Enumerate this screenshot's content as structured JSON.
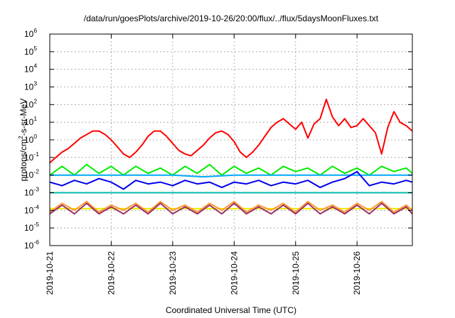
{
  "chart_data": {
    "type": "line",
    "title": "/data/run/goesPlots/archive/2019-10-26/20:00/flux/../flux/5daysMoonFluxes.txt",
    "xlabel": "Coordinated Universal Time (UTC)",
    "ylabel_main": "protons/cm",
    "ylabel_sup": "2",
    "ylabel_tail": "-s-sr-MeV",
    "xlim": [
      0,
      5.9
    ],
    "ylim_log10": [
      -6,
      6
    ],
    "yscale": "log",
    "grid": true,
    "legend": "none",
    "x_ticks": [
      {
        "x": 0,
        "label": "2019-10-21"
      },
      {
        "x": 1,
        "label": "2019-10-22"
      },
      {
        "x": 2,
        "label": "2019-10-23"
      },
      {
        "x": 3,
        "label": "2019-10-24"
      },
      {
        "x": 4,
        "label": "2019-10-25"
      },
      {
        "x": 5,
        "label": "2019-10-26"
      }
    ],
    "y_ticks": [
      {
        "exp": 6,
        "label": "6"
      },
      {
        "exp": 5,
        "label": "5"
      },
      {
        "exp": 4,
        "label": "4"
      },
      {
        "exp": 3,
        "label": "3"
      },
      {
        "exp": 2,
        "label": "2"
      },
      {
        "exp": 1,
        "label": "1"
      },
      {
        "exp": 0,
        "label": "0"
      },
      {
        "exp": -1,
        "label": "-1"
      },
      {
        "exp": -2,
        "label": "-2"
      },
      {
        "exp": -3,
        "label": "-3"
      },
      {
        "exp": -4,
        "label": "-4"
      },
      {
        "exp": -5,
        "label": "-5"
      },
      {
        "exp": -6,
        "label": "-6"
      }
    ],
    "series": [
      {
        "color": "#ff0000",
        "x": [
          0,
          0.1,
          0.2,
          0.3,
          0.4,
          0.5,
          0.6,
          0.7,
          0.8,
          0.9,
          1.0,
          1.1,
          1.2,
          1.3,
          1.4,
          1.5,
          1.6,
          1.7,
          1.8,
          1.9,
          2.0,
          2.1,
          2.2,
          2.3,
          2.4,
          2.5,
          2.6,
          2.7,
          2.8,
          2.9,
          3.0,
          3.1,
          3.2,
          3.3,
          3.4,
          3.5,
          3.6,
          3.7,
          3.8,
          3.9,
          4.0,
          4.1,
          4.2,
          4.3,
          4.4,
          4.5,
          4.6,
          4.7,
          4.8,
          4.9,
          5.0,
          5.1,
          5.2,
          5.3,
          5.4,
          5.5,
          5.6,
          5.7,
          5.8,
          5.9
        ],
        "log10_y": [
          -1.3,
          -1.0,
          -0.7,
          -0.5,
          -0.2,
          0.1,
          0.3,
          0.5,
          0.5,
          0.3,
          0.0,
          -0.4,
          -0.8,
          -1.0,
          -0.7,
          -0.3,
          0.2,
          0.5,
          0.5,
          0.2,
          -0.2,
          -0.6,
          -0.8,
          -0.9,
          -0.6,
          -0.3,
          0.1,
          0.4,
          0.5,
          0.3,
          -0.1,
          -0.7,
          -1.0,
          -0.7,
          -0.3,
          0.2,
          0.7,
          1.0,
          1.2,
          0.9,
          0.6,
          1.0,
          0.1,
          0.9,
          1.2,
          2.3,
          1.3,
          0.8,
          1.2,
          0.7,
          0.8,
          1.2,
          0.8,
          0.4,
          -0.8,
          0.7,
          1.6,
          1.0,
          0.8,
          0.5
        ]
      },
      {
        "color": "#00ee00",
        "x": [
          0,
          0.2,
          0.4,
          0.6,
          0.8,
          1.0,
          1.2,
          1.4,
          1.6,
          1.8,
          2.0,
          2.2,
          2.4,
          2.6,
          2.8,
          3.0,
          3.2,
          3.4,
          3.6,
          3.8,
          4.0,
          4.2,
          4.4,
          4.6,
          4.8,
          5.0,
          5.2,
          5.4,
          5.6,
          5.8,
          5.9
        ],
        "log10_y": [
          -2.0,
          -1.5,
          -2.0,
          -1.4,
          -1.9,
          -1.5,
          -2.0,
          -1.5,
          -1.9,
          -1.6,
          -2.0,
          -1.5,
          -1.9,
          -1.4,
          -2.0,
          -1.5,
          -1.9,
          -1.6,
          -2.0,
          -1.5,
          -1.8,
          -1.6,
          -2.0,
          -1.5,
          -1.9,
          -1.6,
          -2.0,
          -1.5,
          -1.8,
          -1.6,
          -1.9
        ]
      },
      {
        "color": "#00aaff",
        "x": [
          0,
          0.5,
          1.0,
          1.5,
          2.0,
          2.5,
          3.0,
          3.5,
          4.0,
          4.5,
          5.0,
          5.5,
          5.9
        ],
        "log10_y": [
          -2.0,
          -2.0,
          -2.0,
          -2.0,
          -2.0,
          -2.1,
          -2.0,
          -2.0,
          -2.0,
          -2.0,
          -2.0,
          -2.0,
          -2.0
        ]
      },
      {
        "color": "#0000ee",
        "x": [
          0,
          0.2,
          0.4,
          0.6,
          0.8,
          1.0,
          1.2,
          1.4,
          1.6,
          1.8,
          2.0,
          2.2,
          2.4,
          2.6,
          2.8,
          3.0,
          3.2,
          3.4,
          3.6,
          3.8,
          4.0,
          4.2,
          4.4,
          4.6,
          4.8,
          5.0,
          5.2,
          5.4,
          5.6,
          5.8,
          5.9
        ],
        "log10_y": [
          -2.4,
          -2.6,
          -2.3,
          -2.5,
          -2.2,
          -2.4,
          -2.8,
          -2.3,
          -2.5,
          -2.4,
          -2.6,
          -2.3,
          -2.5,
          -2.4,
          -2.7,
          -2.4,
          -2.5,
          -2.3,
          -2.6,
          -2.4,
          -2.5,
          -2.3,
          -2.7,
          -2.4,
          -2.2,
          -1.8,
          -2.6,
          -2.4,
          -2.5,
          -2.3,
          -2.4
        ]
      },
      {
        "color": "#00bbaa",
        "x": [
          0,
          0.5,
          1.0,
          1.5,
          2.0,
          2.5,
          3.0,
          3.5,
          4.0,
          4.5,
          5.0,
          5.5,
          5.9
        ],
        "log10_y": [
          -3.0,
          -3.0,
          -3.0,
          -3.0,
          -3.0,
          -3.0,
          -3.0,
          -3.0,
          -3.0,
          -3.0,
          -3.0,
          -3.0,
          -3.0
        ]
      },
      {
        "color": "#eeee00",
        "x": [
          0,
          0.5,
          1.0,
          1.5,
          2.0,
          2.5,
          3.0,
          3.5,
          4.0,
          4.5,
          5.0,
          5.5,
          5.9
        ],
        "log10_y": [
          -3.9,
          -3.9,
          -3.9,
          -3.9,
          -3.9,
          -3.9,
          -3.9,
          -3.9,
          -3.9,
          -3.9,
          -3.9,
          -3.9,
          -3.9
        ]
      },
      {
        "color": "#ff9933",
        "x": [
          0,
          0.2,
          0.4,
          0.6,
          0.8,
          1.0,
          1.2,
          1.4,
          1.6,
          1.8,
          2.0,
          2.2,
          2.4,
          2.6,
          2.8,
          3.0,
          3.2,
          3.4,
          3.6,
          3.8,
          4.0,
          4.2,
          4.4,
          4.6,
          4.8,
          5.0,
          5.2,
          5.4,
          5.6,
          5.8,
          5.9
        ],
        "log10_y": [
          -4.1,
          -3.6,
          -4.0,
          -3.5,
          -4.1,
          -3.7,
          -4.0,
          -3.6,
          -4.1,
          -3.5,
          -4.0,
          -3.7,
          -4.1,
          -3.6,
          -4.0,
          -3.5,
          -4.1,
          -3.7,
          -4.0,
          -3.6,
          -4.1,
          -3.5,
          -4.0,
          -3.7,
          -4.1,
          -3.6,
          -4.0,
          -3.5,
          -4.1,
          -3.7,
          -4.0
        ]
      },
      {
        "color": "#993366",
        "x": [
          0,
          0.2,
          0.4,
          0.6,
          0.8,
          1.0,
          1.2,
          1.4,
          1.6,
          1.8,
          2.0,
          2.2,
          2.4,
          2.6,
          2.8,
          3.0,
          3.2,
          3.4,
          3.6,
          3.8,
          4.0,
          4.2,
          4.4,
          4.6,
          4.8,
          5.0,
          5.2,
          5.4,
          5.6,
          5.8,
          5.9
        ],
        "log10_y": [
          -4.2,
          -3.7,
          -4.2,
          -3.6,
          -4.2,
          -3.8,
          -4.2,
          -3.7,
          -4.2,
          -3.6,
          -4.2,
          -3.8,
          -4.2,
          -3.7,
          -4.2,
          -3.6,
          -4.2,
          -3.8,
          -4.2,
          -3.7,
          -4.2,
          -3.6,
          -4.2,
          -3.8,
          -4.2,
          -3.7,
          -4.2,
          -3.6,
          -4.2,
          -3.8,
          -4.2
        ]
      }
    ]
  }
}
